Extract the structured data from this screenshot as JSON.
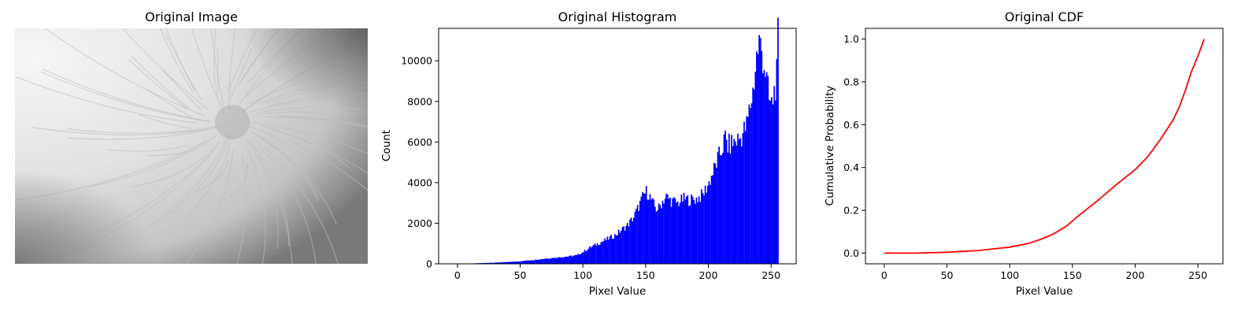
{
  "figure": {
    "panels": [
      {
        "title": "Original Image"
      },
      {
        "title": "Original Histogram"
      },
      {
        "title": "Original CDF"
      }
    ]
  },
  "image_panel": {
    "description_icon": "grayscale-flower-photo",
    "tones": {
      "bright": "#f3f3f3",
      "mid": "#d9d9d9",
      "dark": "#6f6f6f",
      "petal_edge": "#bdbdbd"
    }
  },
  "chart_data": [
    {
      "type": "bar",
      "title": "Original Histogram",
      "xlabel": "Pixel Value",
      "ylabel": "Count",
      "xlim": [
        -15,
        270
      ],
      "ylim": [
        0,
        11600
      ],
      "xticks": [
        0,
        50,
        100,
        150,
        200,
        250
      ],
      "yticks": [
        0,
        2000,
        4000,
        6000,
        8000,
        10000
      ],
      "color": "#0000ff",
      "bin_width": 1,
      "control_points": [
        [
          0,
          0
        ],
        [
          10,
          0
        ],
        [
          12,
          20
        ],
        [
          20,
          40
        ],
        [
          30,
          60
        ],
        [
          40,
          90
        ],
        [
          50,
          130
        ],
        [
          60,
          190
        ],
        [
          70,
          260
        ],
        [
          80,
          320
        ],
        [
          90,
          380
        ],
        [
          95,
          420
        ],
        [
          100,
          600
        ],
        [
          105,
          800
        ],
        [
          110,
          950
        ],
        [
          115,
          1100
        ],
        [
          120,
          1250
        ],
        [
          125,
          1400
        ],
        [
          130,
          1650
        ],
        [
          135,
          1900
        ],
        [
          140,
          2300
        ],
        [
          143,
          2700
        ],
        [
          146,
          3100
        ],
        [
          148,
          3400
        ],
        [
          150,
          3550
        ],
        [
          152,
          3450
        ],
        [
          155,
          3000
        ],
        [
          158,
          2700
        ],
        [
          160,
          2750
        ],
        [
          163,
          3100
        ],
        [
          166,
          3300
        ],
        [
          170,
          3100
        ],
        [
          175,
          3000
        ],
        [
          180,
          3200
        ],
        [
          185,
          3150
        ],
        [
          190,
          3200
        ],
        [
          195,
          3400
        ],
        [
          200,
          4000
        ],
        [
          205,
          4800
        ],
        [
          210,
          5600
        ],
        [
          213,
          6200
        ],
        [
          215,
          5800
        ],
        [
          220,
          6000
        ],
        [
          225,
          6200
        ],
        [
          230,
          6800
        ],
        [
          232,
          7500
        ],
        [
          235,
          8500
        ],
        [
          238,
          10200
        ],
        [
          240,
          10900
        ],
        [
          242,
          10500
        ],
        [
          245,
          9500
        ],
        [
          248,
          8000
        ],
        [
          250,
          7800
        ],
        [
          252,
          8500
        ],
        [
          254,
          9200
        ],
        [
          255,
          11100
        ]
      ]
    },
    {
      "type": "line",
      "title": "Original CDF",
      "xlabel": "Pixel Value",
      "ylabel": "Cumulative Probability",
      "xlim": [
        -15,
        270
      ],
      "ylim": [
        -0.05,
        1.05
      ],
      "xticks": [
        0,
        50,
        100,
        150,
        200,
        250
      ],
      "yticks": [
        0.0,
        0.2,
        0.4,
        0.6,
        0.8,
        1.0
      ],
      "color": "#ff0000",
      "x": [
        0,
        25,
        50,
        75,
        100,
        115,
        125,
        135,
        145,
        155,
        170,
        185,
        200,
        210,
        220,
        230,
        235,
        240,
        245,
        250,
        255
      ],
      "y": [
        0.0,
        0.0,
        0.004,
        0.012,
        0.028,
        0.045,
        0.065,
        0.09,
        0.125,
        0.175,
        0.245,
        0.32,
        0.39,
        0.45,
        0.53,
        0.62,
        0.68,
        0.76,
        0.85,
        0.92,
        1.0
      ]
    }
  ]
}
